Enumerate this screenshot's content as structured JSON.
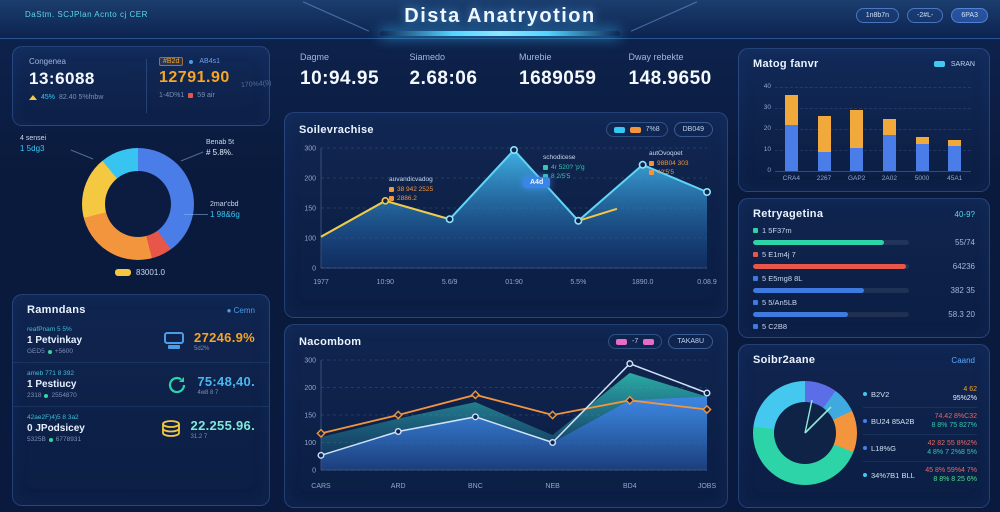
{
  "header": {
    "left_text": "DaStm. SCJPlan Acnto cj CER",
    "title": "Dista Anatryotion",
    "buttons": [
      "1n8b7n",
      "-2#L-",
      "6PA3"
    ]
  },
  "kpi": {
    "left": {
      "label": "Congenea",
      "value": "13:6088",
      "delta": "45%",
      "note": "82.40 5%fnbw"
    },
    "right": {
      "chip": "#B2d",
      "chip2": "AB4s1",
      "value": "12791.90",
      "note": "1-4D%1",
      "note2": "59 air",
      "faint": "170%4(9)"
    }
  },
  "stats": [
    {
      "label": "Dagme",
      "value": "10:94.95"
    },
    {
      "label": "Siamedo",
      "value": "2.68:06"
    },
    {
      "label": "Murebie",
      "value": "1689059"
    },
    {
      "label": "Dway rebekte",
      "value": "148.9650"
    }
  ],
  "donut_left": {
    "callouts": [
      {
        "label": "4 sensei",
        "value": "1 5dg3"
      },
      {
        "label": "Benab 5t",
        "value": "# 5.8%."
      },
      {
        "label": "2mar'cbd",
        "value": "1 98&6g"
      }
    ],
    "caption": "83001.0"
  },
  "list_card": {
    "title": "Ramndans",
    "link": "Cemn",
    "rows": [
      {
        "top": "reafPnam 5 5%",
        "main": "1 Petvinkay",
        "sub": "GED5",
        "sub2": "+5600",
        "icon": "terminal-icon",
        "icon_color": "#4a9de8",
        "value": "27246.9%",
        "value_color": "#f5a623",
        "value_sub": "5d2%"
      },
      {
        "top": "ameb 771 8 392",
        "main": "1 Pestiucy",
        "sub": "2318",
        "sub2": "2554870",
        "icon": "recycle-icon",
        "icon_color": "#2dd4a8",
        "value": "75:48,40.",
        "value_color": "#4ab8f0",
        "value_sub": "4w8 8 7"
      },
      {
        "top": "42ae2F)4)5 8 3a2",
        "main": "0 JPodsicey",
        "sub": "5325B",
        "sub2": "6778931",
        "icon": "cash-icon",
        "icon_color": "#f5c842",
        "value": "22.255.96.",
        "value_color": "#7fe8d8",
        "value_sub": "31.2 7"
      }
    ]
  },
  "main_chart_card": {
    "title": "Soilevrachise",
    "legend_label": "7%8",
    "legend_button": "DB049",
    "tooltip": "A4d",
    "annotations": [
      {
        "title": "auvandicvadog",
        "rows": [
          "38 942 2525",
          "2886.2"
        ],
        "color": "#f2953c"
      },
      {
        "title": "schodicese",
        "rows": [
          "4r 520? 'p'g",
          "8 2/5'5"
        ],
        "color": "#35c8b0"
      },
      {
        "title": "autOvoqoet",
        "rows": [
          "98B04 303",
          "42'5'5"
        ],
        "color": "#f2953c"
      }
    ]
  },
  "bottom_chart_card": {
    "title": "Nacombom",
    "legend_label": "-7",
    "legend_button": "TAKA8U"
  },
  "bars_card": {
    "title": "Matog fanvr",
    "legend": "SARAN"
  },
  "progress_card": {
    "title": "Retryagetina",
    "badge": "40-9?",
    "rows": [
      {
        "label": "1 5F37m",
        "pct": 84,
        "color": "#2dd4a8",
        "value": "55/74"
      },
      {
        "label": "5 E1m4j 7",
        "pct": 98,
        "color": "#e85549",
        "value": "64236"
      },
      {
        "label": "5 E5mg8 8L",
        "pct": 71,
        "color": "#3f7ae0",
        "value": "382 35"
      },
      {
        "label": "5 5/An5LB",
        "pct": 61,
        "color": "#3f7ae0",
        "value": "58.3 20"
      },
      {
        "label": "5 C2B8",
        "pct": 0,
        "color": "#3f7ae0",
        "value": ""
      }
    ]
  },
  "donut_right_card": {
    "title": "Soibr2aane",
    "link": "Caand",
    "legend": [
      {
        "dot": "#45c8f0",
        "label": "B2V2",
        "v1": "4 62",
        "v1_color": "#f5a623",
        "v2": "95%2%",
        "v2_color": "#e8f2ff"
      },
      {
        "dot": "#4a7de8",
        "label": "BU24 85A2B",
        "v1": "74.42 8%C32",
        "v1_color": "#e86860",
        "v2": "8 8% 75 827%",
        "v2_color": "#35c8b0"
      },
      {
        "dot": "#4a7de8",
        "label": "L18%G",
        "v1": "42 82 55 8%2%",
        "v1_color": "#e86860",
        "v2": "4 8% 7 2%8 5%",
        "v2_color": "#35c8b0"
      },
      {
        "dot": "#45c8f0",
        "label": "34%7B1 BLL",
        "v1": "45 8% 59%4 7%",
        "v1_color": "#e86860",
        "v2": "8 8% 8 25 6%",
        "v2_color": "#4be08a"
      }
    ]
  },
  "chart_data": [
    {
      "id": "main-area-chart",
      "type": "area",
      "title": "Soilevrachise",
      "x": [
        "1977",
        "10:90",
        "5.6/9",
        "01:90",
        "5.5%",
        "1890.0",
        "0.08.9"
      ],
      "y_ticks": [
        "300",
        "200",
        "150",
        "100",
        "0"
      ],
      "ylim": [
        0,
        300
      ],
      "series": [
        {
          "name": "area-blue",
          "type": "area",
          "color": "#3bb3e8",
          "values": [
            78,
            168,
            122,
            295,
            118,
            258,
            190
          ]
        },
        {
          "name": "line-yellow",
          "type": "line",
          "color": "#f5c842",
          "points": [
            [
              0,
              78
            ],
            [
              1,
              168
            ],
            [
              2,
              122
            ]
          ]
        },
        {
          "name": "line-yellow-2",
          "type": "line",
          "color": "#f5c842",
          "points": [
            [
              4,
              118
            ],
            [
              4.6,
              148
            ]
          ]
        }
      ],
      "markers": [
        [
          2,
          122
        ],
        [
          3,
          295
        ],
        [
          4,
          118
        ],
        [
          5,
          258
        ],
        [
          6,
          190
        ]
      ],
      "marker_yellow": [
        [
          1,
          168
        ]
      ],
      "legend_position": "top-right",
      "grid": true
    },
    {
      "id": "bottom-area-chart",
      "type": "area",
      "title": "Nacombom",
      "x": [
        "CARS",
        "ARD",
        "BNC",
        "NEB",
        "BD4",
        "JOBS"
      ],
      "y_ticks": [
        "300",
        "200",
        "150",
        "100",
        "0"
      ],
      "ylim": [
        0,
        300
      ],
      "series": [
        {
          "name": "area-teal",
          "type": "area",
          "color": "#2fc4b2",
          "values": [
            90,
            140,
            185,
            95,
            265,
            200
          ]
        },
        {
          "name": "area-blue",
          "type": "area",
          "color": "#3f86e8",
          "values": [
            40,
            105,
            145,
            75,
            190,
            200
          ]
        },
        {
          "name": "line-orange",
          "type": "line",
          "color": "#f2953c",
          "values": [
            100,
            150,
            205,
            150,
            190,
            165
          ]
        },
        {
          "name": "line-light",
          "type": "line",
          "color": "#cfe2f8",
          "values": [
            40,
            105,
            145,
            75,
            290,
            210
          ]
        }
      ],
      "grid": true
    },
    {
      "id": "stacked-bars",
      "type": "bar",
      "title": "Matog fanvr",
      "categories": [
        "CRA4",
        "2267",
        "GAP2",
        "2A02",
        "5000",
        "45A1"
      ],
      "y_ticks": [
        "40",
        "30",
        "20",
        "10",
        "0"
      ],
      "ylim": [
        0,
        40
      ],
      "series": [
        {
          "name": "blue",
          "color": "#4a7de8",
          "values": [
            22,
            9,
            11,
            17,
            13,
            12
          ]
        },
        {
          "name": "orange",
          "color": "#f2a93c",
          "values": [
            14,
            17,
            18,
            8,
            3,
            3
          ]
        }
      ]
    },
    {
      "id": "donut-left",
      "type": "pie",
      "segments": [
        {
          "color": "#4a7de8",
          "pct": 40
        },
        {
          "color": "#e85549",
          "pct": 6
        },
        {
          "color": "#f2953c",
          "pct": 25
        },
        {
          "color": "#f5c842",
          "pct": 18
        },
        {
          "color": "#38c4f0",
          "pct": 11
        }
      ]
    },
    {
      "id": "donut-right",
      "type": "pie",
      "segments": [
        {
          "color": "#5b6ee8",
          "pct": 10
        },
        {
          "color": "#3fa9e0",
          "pct": 8
        },
        {
          "color": "#f2953c",
          "pct": 13
        },
        {
          "color": "#2dd4a8",
          "pct": 46
        },
        {
          "color": "#45c8f0",
          "pct": 23
        }
      ]
    },
    {
      "id": "progress-bars",
      "type": "bar",
      "categories": [
        "1 5F37m",
        "5 E1m4j 7",
        "5 E5mg8 8L",
        "5 5/An5LB"
      ],
      "values": [
        84,
        98,
        71,
        61
      ]
    }
  ]
}
